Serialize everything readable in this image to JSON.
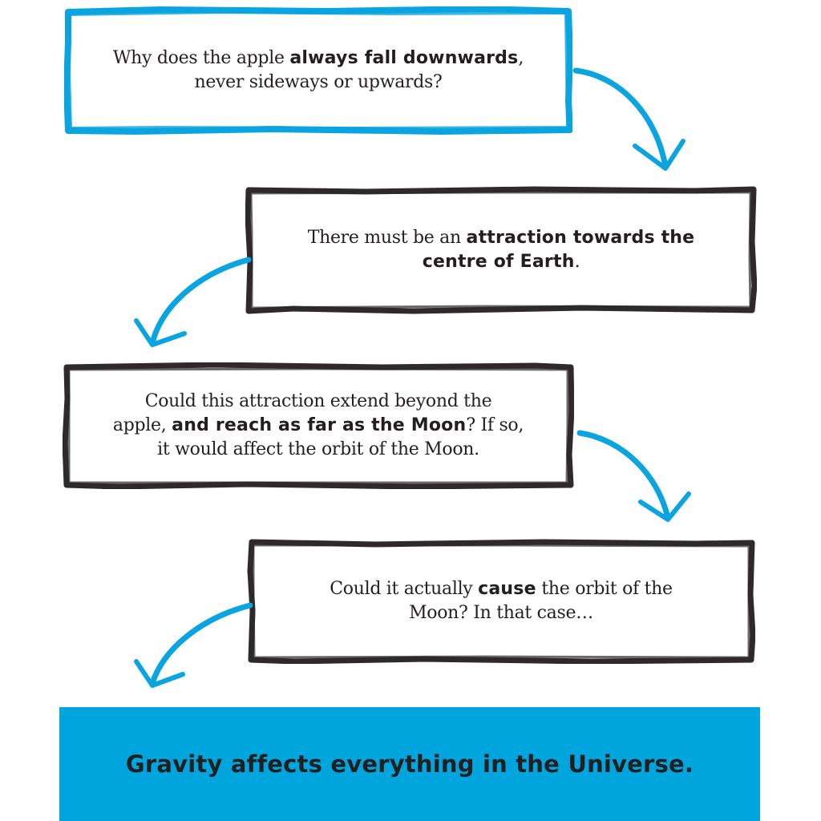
{
  "colors": {
    "accent_blue": "#0aa4e0",
    "frame_dark": "#2e2a2b",
    "text": "#231f20",
    "banner_bg": "#00a5de"
  },
  "steps": [
    {
      "frame_color": "blue",
      "parts": [
        {
          "text": "Why does the apple ",
          "bold": false
        },
        {
          "text": "always fall downwards",
          "bold": true
        },
        {
          "text": ",",
          "bold": false
        },
        {
          "br": true
        },
        {
          "text": "never sideways or upwards?",
          "bold": false
        }
      ]
    },
    {
      "frame_color": "dark",
      "parts": [
        {
          "text": "There must be an ",
          "bold": false
        },
        {
          "text": "attraction towards the",
          "bold": true
        },
        {
          "br": true
        },
        {
          "text": "centre of Earth",
          "bold": true
        },
        {
          "text": ".",
          "bold": false
        }
      ]
    },
    {
      "frame_color": "dark",
      "parts": [
        {
          "text": "Could this attraction extend beyond the",
          "bold": false
        },
        {
          "br": true
        },
        {
          "text": "apple, ",
          "bold": false
        },
        {
          "text": "and reach as far as the Moon",
          "bold": true
        },
        {
          "text": "? If so,",
          "bold": false
        },
        {
          "br": true
        },
        {
          "text": "it would affect the orbit of the Moon.",
          "bold": false
        }
      ]
    },
    {
      "frame_color": "dark",
      "parts": [
        {
          "text": "Could it actually ",
          "bold": false
        },
        {
          "text": "cause",
          "bold": true
        },
        {
          "text": " the orbit of the",
          "bold": false
        },
        {
          "br": true
        },
        {
          "text": "Moon? In that case…",
          "bold": false
        }
      ]
    }
  ],
  "conclusion": {
    "text": "Gravity affects everything in the Universe."
  }
}
